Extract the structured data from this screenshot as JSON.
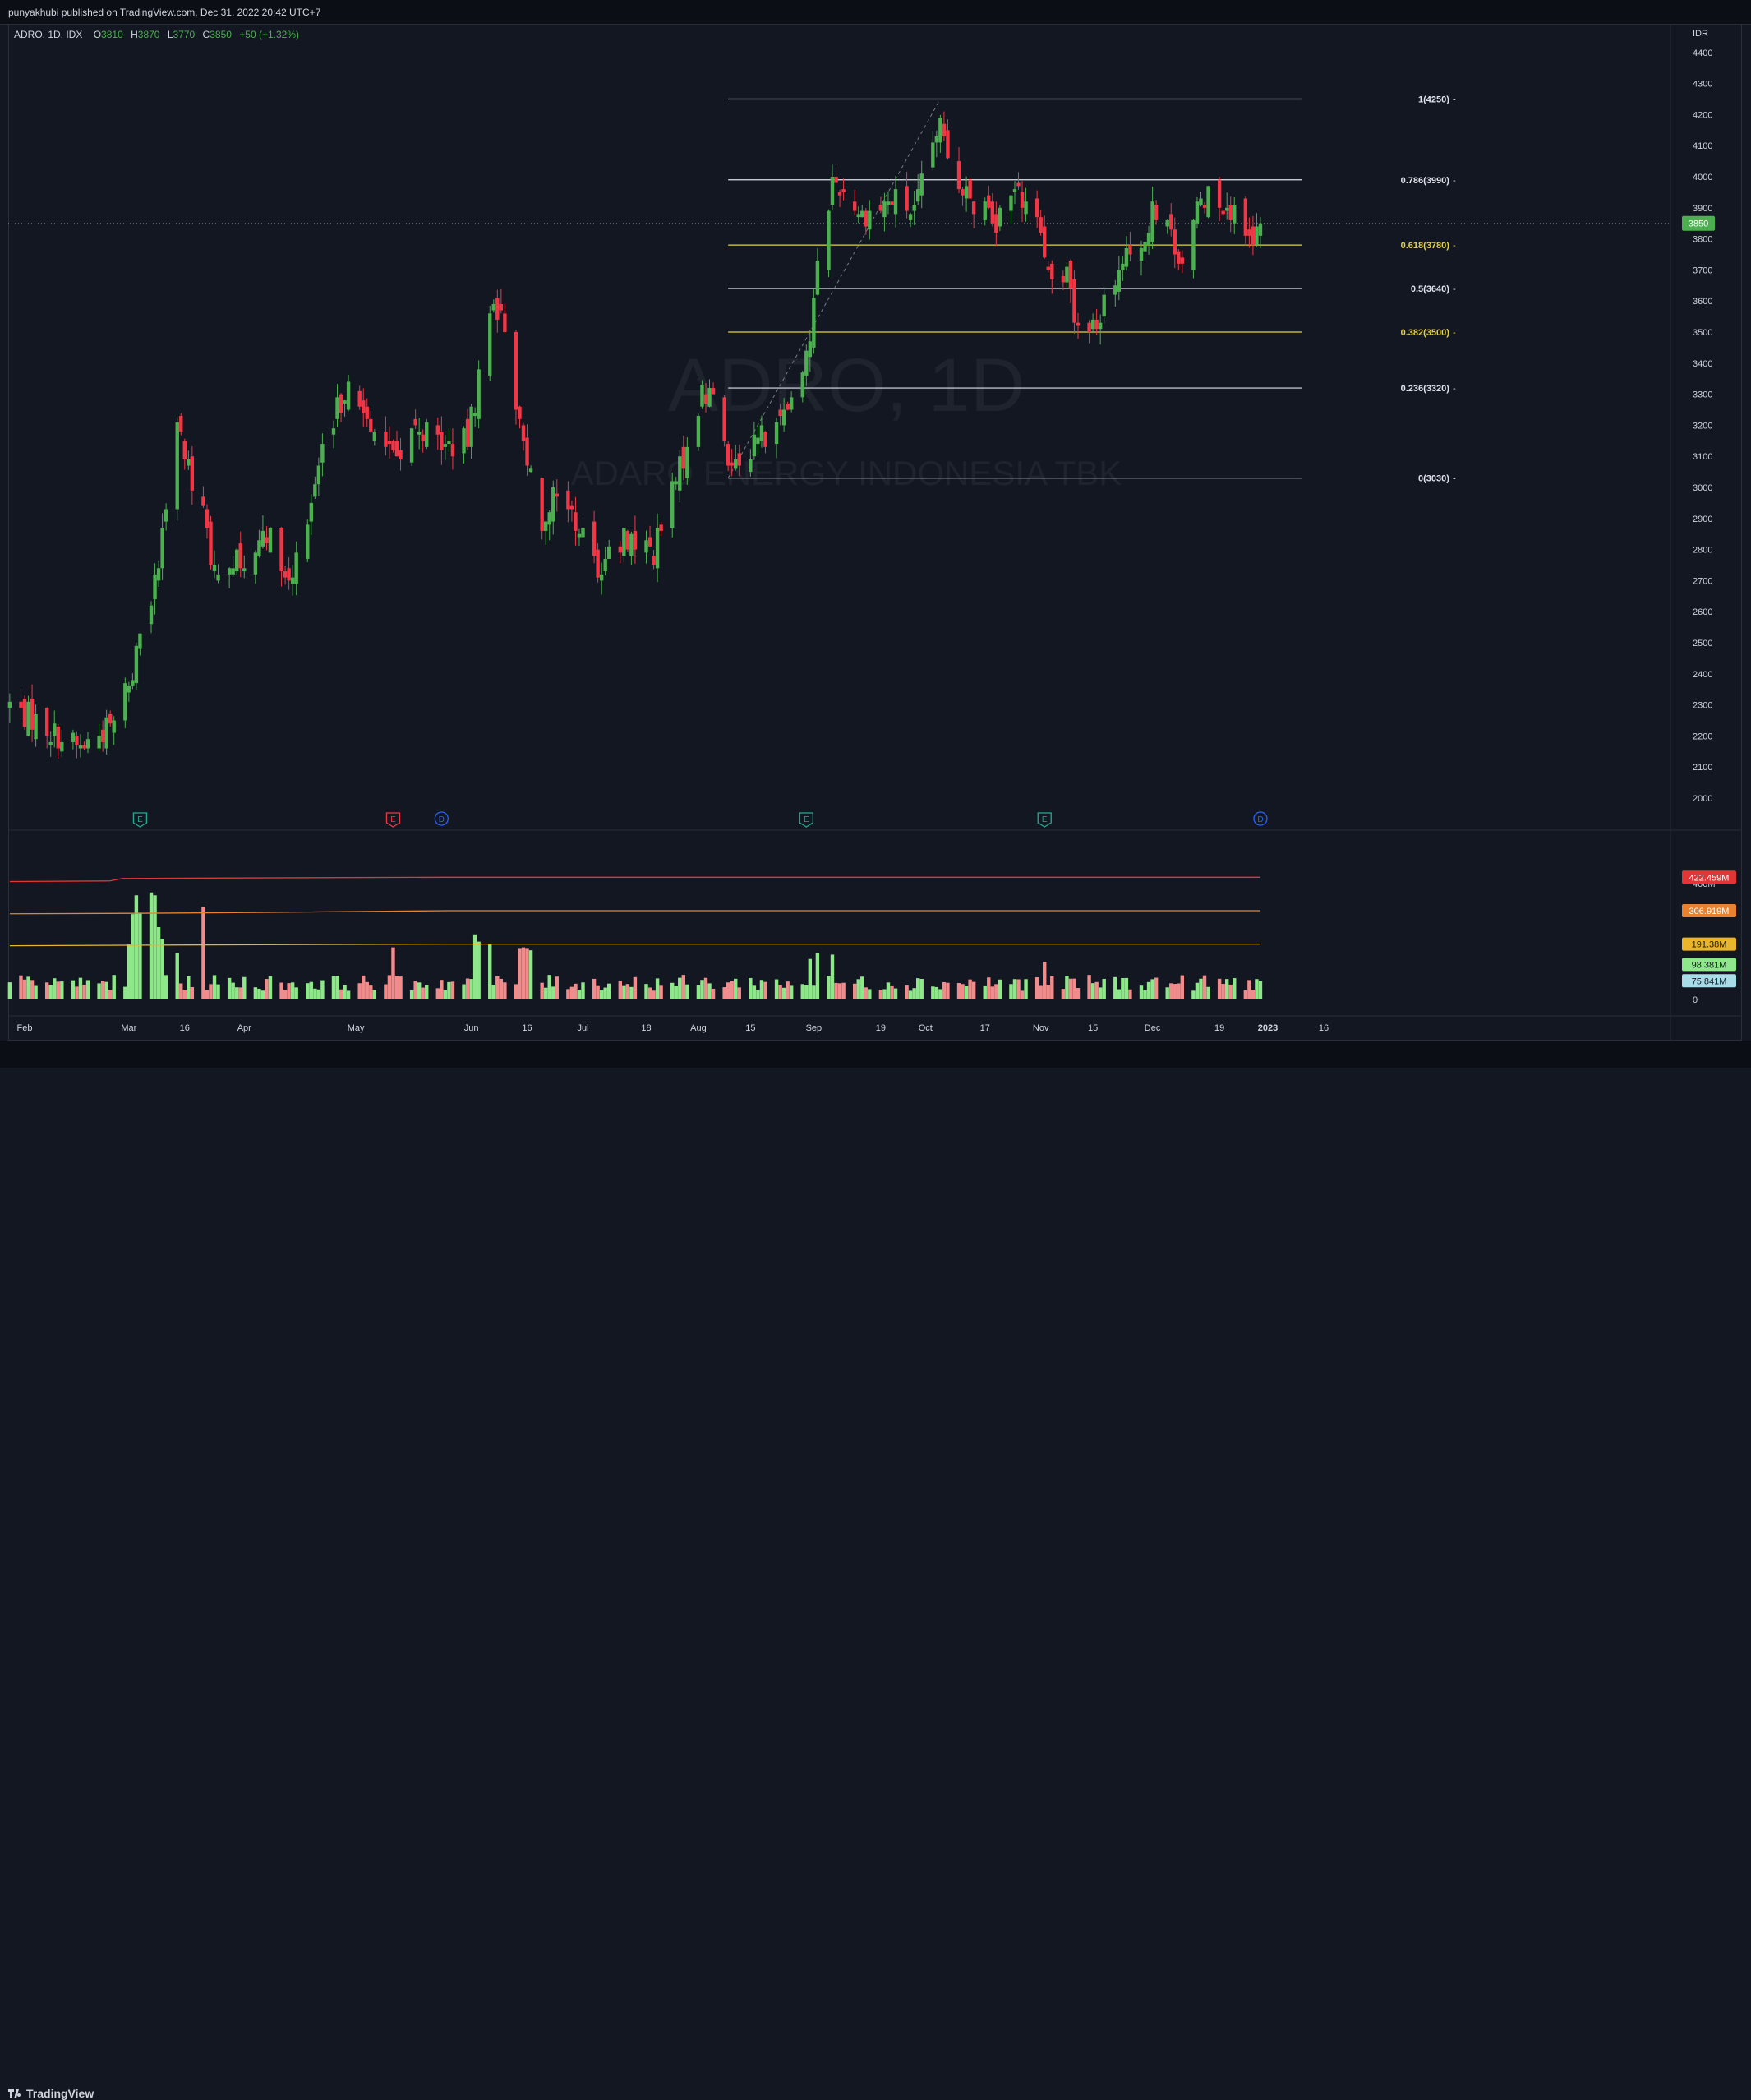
{
  "header": {
    "publish_line": "punyakhubi published on TradingView.com, Dec 31, 2022 20:42 UTC+7"
  },
  "legend": {
    "symbol_line": "ADRO, 1D, IDX",
    "o_label": "O",
    "o_value": "3810",
    "h_label": "H",
    "h_value": "3870",
    "l_label": "L",
    "l_value": "3770",
    "c_label": "C",
    "c_value": "3850",
    "change": "+50 (+1.32%)"
  },
  "watermark": {
    "symbol": "ADRO, 1D",
    "name": "ADARO ENERGY INDONESIA TBK"
  },
  "footer": {
    "brand": "TradingView"
  },
  "colors": {
    "background": "#131722",
    "up": "#4caf50",
    "down": "#f23645",
    "vol_up": "#8ee88a",
    "vol_down": "#f28b8b",
    "fib_white": "#e0e3eb",
    "fib_yellow": "#e6d33b",
    "ma_red": "#e03636",
    "ma_orange": "#e8822f",
    "ma_yellow": "#e8b52b",
    "ma_white": "#d1d4dc"
  },
  "chart_data": {
    "type": "candlestick",
    "currency": "IDR",
    "ylim": [
      1900,
      4500
    ],
    "price_ticks": [
      2000,
      2100,
      2200,
      2300,
      2400,
      2500,
      2600,
      2700,
      2800,
      2900,
      3000,
      3100,
      3200,
      3300,
      3400,
      3500,
      3600,
      3700,
      3800,
      3900,
      4000,
      4100,
      4200,
      4300,
      4400
    ],
    "x_labels": [
      "Feb",
      "Mar",
      "16",
      "Apr",
      "May",
      "Jun",
      "16",
      "Jul",
      "18",
      "Aug",
      "15",
      "Sep",
      "19",
      "Oct",
      "17",
      "Nov",
      "15",
      "Dec",
      "19",
      "2023",
      "16"
    ],
    "x_label_dates": [
      "2022-02-01",
      "2022-03-01",
      "2022-03-16",
      "2022-04-01",
      "2022-05-01",
      "2022-06-01",
      "2022-06-16",
      "2022-07-01",
      "2022-07-18",
      "2022-08-01",
      "2022-08-15",
      "2022-09-01",
      "2022-09-19",
      "2022-10-01",
      "2022-10-17",
      "2022-11-01",
      "2022-11-15",
      "2022-12-01",
      "2022-12-19",
      "2023-01-01",
      "2023-01-16"
    ],
    "last_price": 3850,
    "close_anchors": [
      [
        "2022-01-28",
        2300
      ],
      [
        "2022-02-10",
        2200
      ],
      [
        "2022-02-16",
        2160
      ],
      [
        "2022-02-25",
        2240
      ],
      [
        "2022-03-03",
        2460
      ],
      [
        "2022-03-09",
        2760
      ],
      [
        "2022-03-14",
        3180
      ],
      [
        "2022-03-21",
        2900
      ],
      [
        "2022-03-25",
        2680
      ],
      [
        "2022-03-31",
        2780
      ],
      [
        "2022-04-08",
        2850
      ],
      [
        "2022-04-13",
        2700
      ],
      [
        "2022-04-22",
        3100
      ],
      [
        "2022-04-28",
        3320
      ],
      [
        "2022-05-06",
        3200
      ],
      [
        "2022-05-12",
        3100
      ],
      [
        "2022-05-18",
        3200
      ],
      [
        "2022-05-25",
        3130
      ],
      [
        "2022-05-31",
        3150
      ],
      [
        "2022-06-07",
        3620
      ],
      [
        "2022-06-10",
        3500
      ],
      [
        "2022-06-14",
        3210
      ],
      [
        "2022-06-20",
        2900
      ],
      [
        "2022-06-24",
        3000
      ],
      [
        "2022-07-01",
        2850
      ],
      [
        "2022-07-05",
        2740
      ],
      [
        "2022-07-13",
        2840
      ],
      [
        "2022-07-20",
        2790
      ],
      [
        "2022-07-27",
        3060
      ],
      [
        "2022-08-02",
        3300
      ],
      [
        "2022-08-05",
        3300
      ],
      [
        "2022-08-09",
        3070
      ],
      [
        "2022-08-16",
        3150
      ],
      [
        "2022-08-23",
        3200
      ],
      [
        "2022-08-31",
        3480
      ],
      [
        "2022-09-02",
        3700
      ],
      [
        "2022-09-06",
        3990
      ],
      [
        "2022-09-09",
        3950
      ],
      [
        "2022-09-14",
        3880
      ],
      [
        "2022-09-19",
        3900
      ],
      [
        "2022-09-23",
        3930
      ],
      [
        "2022-09-28",
        3880
      ],
      [
        "2022-10-03",
        4100
      ],
      [
        "2022-10-05",
        4180
      ],
      [
        "2022-10-10",
        3970
      ],
      [
        "2022-10-14",
        3920
      ],
      [
        "2022-10-20",
        3850
      ],
      [
        "2022-10-26",
        3950
      ],
      [
        "2022-10-31",
        3900
      ],
      [
        "2022-11-03",
        3720
      ],
      [
        "2022-11-08",
        3680
      ],
      [
        "2022-11-11",
        3500
      ],
      [
        "2022-11-15",
        3530
      ],
      [
        "2022-11-18",
        3580
      ],
      [
        "2022-11-22",
        3700
      ],
      [
        "2022-11-28",
        3780
      ],
      [
        "2022-12-01",
        3880
      ],
      [
        "2022-12-05",
        3830
      ],
      [
        "2022-12-09",
        3730
      ],
      [
        "2022-12-13",
        3880
      ],
      [
        "2022-12-16",
        3960
      ],
      [
        "2022-12-21",
        3920
      ],
      [
        "2022-12-26",
        3780
      ],
      [
        "2022-12-29",
        3800
      ],
      [
        "2022-12-30",
        3850
      ]
    ],
    "fibonacci": {
      "start": "2022-08-09",
      "end": "2022-10-05",
      "extend_to": "2022-12-30",
      "levels": [
        {
          "ratio": "1",
          "price": 4250,
          "label": "1(4250)",
          "color": "#e0e3eb"
        },
        {
          "ratio": "0.786",
          "price": 3990,
          "label": "0.786(3990)",
          "color": "#e0e3eb"
        },
        {
          "ratio": "0.618",
          "price": 3780,
          "label": "0.618(3780)",
          "color": "#e6d33b"
        },
        {
          "ratio": "0.5",
          "price": 3640,
          "label": "0.5(3640)",
          "color": "#e0e3eb"
        },
        {
          "ratio": "0.382",
          "price": 3500,
          "label": "0.382(3500)",
          "color": "#e6d33b"
        },
        {
          "ratio": "0.236",
          "price": 3320,
          "label": "0.236(3320)",
          "color": "#e0e3eb"
        },
        {
          "ratio": "0",
          "price": 3030,
          "label": "0(3030)",
          "color": "#e0e3eb"
        }
      ]
    },
    "events": [
      {
        "date": "2022-03-04",
        "type": "E"
      },
      {
        "date": "2022-05-11",
        "type": "E"
      },
      {
        "date": "2022-05-24",
        "type": "D"
      },
      {
        "date": "2022-08-30",
        "type": "E"
      },
      {
        "date": "2022-11-02",
        "type": "E"
      },
      {
        "date": "2022-12-30",
        "type": "D"
      }
    ],
    "volume": {
      "ylim": [
        0,
        470
      ],
      "tick_labels": [
        {
          "value": 400,
          "text": "400M"
        },
        {
          "value": 0,
          "text": "0"
        }
      ],
      "spikes": [
        [
          "2022-03-01",
          190
        ],
        [
          "2022-03-02",
          295
        ],
        [
          "2022-03-03",
          360
        ],
        [
          "2022-03-04",
          300
        ],
        [
          "2022-03-07",
          370
        ],
        [
          "2022-03-08",
          360
        ],
        [
          "2022-03-09",
          250
        ],
        [
          "2022-03-10",
          210
        ],
        [
          "2022-03-14",
          160
        ],
        [
          "2022-03-21",
          320
        ],
        [
          "2022-05-11",
          180
        ],
        [
          "2022-06-02",
          225
        ],
        [
          "2022-06-03",
          200
        ],
        [
          "2022-06-06",
          190
        ],
        [
          "2022-06-14",
          175
        ],
        [
          "2022-06-15",
          180
        ],
        [
          "2022-06-16",
          175
        ],
        [
          "2022-06-17",
          170
        ],
        [
          "2022-08-31",
          140
        ],
        [
          "2022-09-02",
          160
        ],
        [
          "2022-09-06",
          155
        ],
        [
          "2022-11-02",
          130
        ]
      ],
      "moving_averages": [
        {
          "label": "422.459M",
          "value": 422.459,
          "color": "#e03636",
          "text_color": "#ffffff"
        },
        {
          "label": "306.919M",
          "value": 306.919,
          "color": "#e8822f",
          "text_color": "#ffffff"
        },
        {
          "label": "191.38M",
          "value": 191.38,
          "color": "#e8b52b",
          "text_color": "#131722"
        },
        {
          "label": "98.381M",
          "value": 98.381,
          "color": "#8ee88a",
          "text_color": "#131722"
        },
        {
          "label": "75.841M",
          "value": 75.841,
          "color": "#a8dde8",
          "text_color": "#131722"
        }
      ]
    }
  }
}
